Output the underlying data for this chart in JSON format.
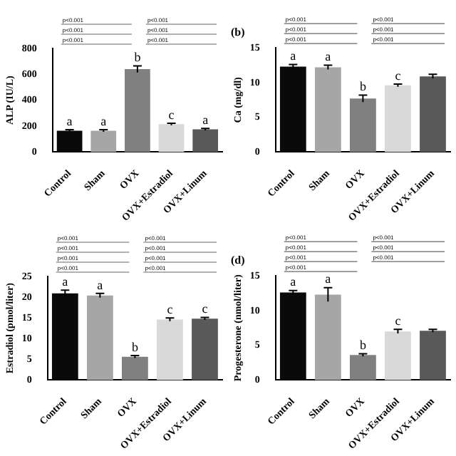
{
  "chart_data": [
    {
      "type": "bar",
      "ylabel": "ALP (IU/L)",
      "categories": [
        "Control",
        "Sham",
        "OVX",
        "OVX+Estradiol",
        "OVX+Linum"
      ],
      "colors": [
        "#0a0a0a",
        "#a6a6a6",
        "#808080",
        "#d9d9d9",
        "#595959"
      ],
      "values": [
        165,
        165,
        640,
        215,
        175
      ],
      "errors": [
        8,
        8,
        25,
        8,
        8
      ],
      "ylim": [
        0,
        800
      ],
      "yticks": [
        0,
        200,
        400,
        600,
        800
      ],
      "grid": false,
      "legend": false,
      "annotations": [
        {
          "text": "a",
          "x": "Control",
          "y": 173
        },
        {
          "text": "a",
          "x": "Sham",
          "y": 173
        },
        {
          "text": "b",
          "x": "OVX",
          "y": 665
        },
        {
          "text": "c",
          "x": "OVX+Estradiol",
          "y": 223
        },
        {
          "text": "a",
          "x": "OVX+Linum",
          "y": 183
        },
        "p<0.001",
        "p<0.001",
        "p<0.001",
        "p<0.001",
        "p<0.001",
        "p<0.001"
      ]
    },
    {
      "type": "bar",
      "title": "(b)",
      "ylabel": "Ca (mg/dl)",
      "categories": [
        "Control",
        "Sham",
        "OVX",
        "OVX+Estradiol",
        "OVX+Linum"
      ],
      "colors": [
        "#0a0a0a",
        "#a6a6a6",
        "#808080",
        "#d9d9d9",
        "#595959"
      ],
      "values": [
        12.3,
        12.2,
        7.7,
        9.6,
        10.9
      ],
      "errors": [
        0.3,
        0.3,
        0.5,
        0.2,
        0.3
      ],
      "ylim": [
        0,
        15
      ],
      "yticks": [
        0,
        5,
        10,
        15
      ],
      "grid": false,
      "legend": false,
      "annotations": [
        {
          "text": "a",
          "x": "Control",
          "y": 12.6
        },
        {
          "text": "a",
          "x": "Sham",
          "y": 12.5
        },
        {
          "text": "b",
          "x": "OVX",
          "y": 8.2
        },
        {
          "text": "c",
          "x": "OVX+Estradiol",
          "y": 9.8
        },
        "p<0.001",
        "p<0.001",
        "p<0.001",
        "p<0.001",
        "p<0.001",
        "p<0.001"
      ]
    },
    {
      "type": "bar",
      "ylabel": "Estradiol (pmol/liter)",
      "categories": [
        "Control",
        "Sham",
        "OVX",
        "OVX+Estradiol",
        "OVX+Linum"
      ],
      "colors": [
        "#0a0a0a",
        "#a6a6a6",
        "#808080",
        "#d9d9d9",
        "#595959"
      ],
      "values": [
        20.9,
        20.4,
        5.6,
        14.6,
        14.8
      ],
      "errors": [
        0.8,
        0.5,
        0.3,
        0.4,
        0.3
      ],
      "ylim": [
        0,
        25
      ],
      "yticks": [
        0,
        5,
        10,
        15,
        20,
        25
      ],
      "grid": false,
      "legend": false,
      "annotations": [
        {
          "text": "a",
          "x": "Control",
          "y": 21.7
        },
        {
          "text": "a",
          "x": "Sham",
          "y": 20.9
        },
        {
          "text": "b",
          "x": "OVX",
          "y": 5.9
        },
        {
          "text": "c",
          "x": "OVX+Estradiol",
          "y": 15
        },
        {
          "text": "c",
          "x": "OVX+Linum",
          "y": 15.1
        },
        "p<0.001",
        "p<0.001",
        "p<0.001",
        "p<0.001",
        "p<0.001",
        "p<0.001",
        "p<0.001",
        "p<0.001"
      ]
    },
    {
      "type": "bar",
      "title": "(d)",
      "ylabel": "Progesterone (nmol/liter)",
      "categories": [
        "Control",
        "Sham",
        "OVX",
        "OVX+Estradiol",
        "OVX+Linum"
      ],
      "colors": [
        "#0a0a0a",
        "#a6a6a6",
        "#808080",
        "#d9d9d9",
        "#595959"
      ],
      "values": [
        12.6,
        12.3,
        3.6,
        7.0,
        7.1
      ],
      "errors": [
        0.3,
        1.0,
        0.2,
        0.3,
        0.2
      ],
      "ylim": [
        0,
        15
      ],
      "yticks": [
        0,
        5,
        10,
        15
      ],
      "grid": false,
      "legend": false,
      "annotations": [
        {
          "text": "a",
          "x": "Control",
          "y": 12.9
        },
        {
          "text": "a",
          "x": "Sham",
          "y": 13.3
        },
        {
          "text": "b",
          "x": "OVX",
          "y": 3.8
        },
        {
          "text": "c",
          "x": "OVX+Estradiol",
          "y": 7.3
        },
        "p<0.001",
        "p<0.001",
        "p<0.001",
        "p<0.001",
        "p<0.001",
        "p<0.001",
        "p<0.001"
      ]
    }
  ]
}
